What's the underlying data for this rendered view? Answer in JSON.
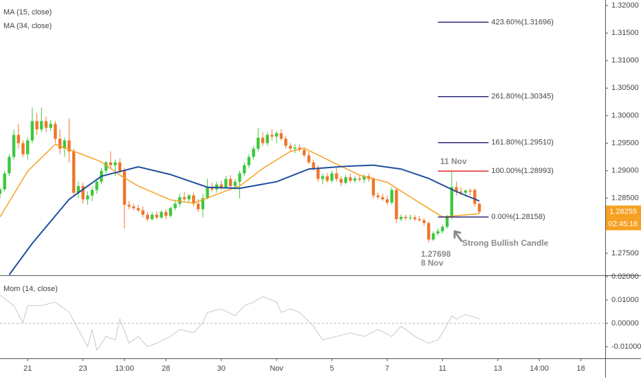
{
  "chart_data": {
    "type": "candlestick",
    "xlim": [
      0,
      131.3
    ],
    "xticks": [
      {
        "value": 6,
        "label": "21"
      },
      {
        "value": 18,
        "label": "23"
      },
      {
        "value": 27,
        "label": "13:00"
      },
      {
        "value": 36,
        "label": "28"
      },
      {
        "value": 48,
        "label": "30"
      },
      {
        "value": 60,
        "label": "Nov"
      },
      {
        "value": 72,
        "label": "5"
      },
      {
        "value": 84,
        "label": "7"
      },
      {
        "value": 96,
        "label": "11"
      },
      {
        "value": 108,
        "label": "13"
      },
      {
        "value": 117,
        "label": "14:00"
      },
      {
        "value": 126,
        "label": "18"
      }
    ],
    "ylim": [
      1.27113,
      1.321
    ],
    "yticks": [
      {
        "value": 1.32,
        "label": "1.32000"
      },
      {
        "value": 1.315,
        "label": "1.31500"
      },
      {
        "value": 1.31,
        "label": "1.31000"
      },
      {
        "value": 1.305,
        "label": "1.30500"
      },
      {
        "value": 1.3,
        "label": "1.30000"
      },
      {
        "value": 1.295,
        "label": "1.29500"
      },
      {
        "value": 1.29,
        "label": "1.29000"
      },
      {
        "value": 1.285,
        "label": "1.28500"
      },
      {
        "value": 1.28,
        "label": "1.28000"
      },
      {
        "value": 1.275,
        "label": "1.27500"
      }
    ],
    "up_color": "#3cc83c",
    "down_color": "#f0752b",
    "candles": {
      "open": [
        1.2858,
        1.2866,
        1.2895,
        1.2925,
        1.2965,
        1.295,
        1.293,
        1.2955,
        1.299,
        1.2975,
        1.299,
        1.2978,
        1.2985,
        1.2958,
        1.294,
        1.2955,
        1.2935,
        1.286,
        1.2872,
        1.2848,
        1.2855,
        1.2865,
        1.288,
        1.29,
        1.2915,
        1.291,
        1.2915,
        1.29,
        1.2838,
        1.2835,
        1.2832,
        1.2828,
        1.282,
        1.2812,
        1.282,
        1.2815,
        1.2825,
        1.2818,
        1.2832,
        1.284,
        1.2852,
        1.2848,
        1.2855,
        1.284,
        1.283,
        1.285,
        1.287,
        1.2866,
        1.2875,
        1.287,
        1.2885,
        1.2872,
        1.288,
        1.2895,
        1.291,
        1.2925,
        1.294,
        1.296,
        1.295,
        1.2965,
        1.2962,
        1.2968,
        1.2958,
        1.2945,
        1.294,
        1.2942,
        1.2938,
        1.2928,
        1.2915,
        1.2905,
        1.2885,
        1.289,
        1.2882,
        1.2895,
        1.2885,
        1.2878,
        1.2888,
        1.2882,
        1.2886,
        1.2884,
        1.289,
        1.2885,
        1.2855,
        1.2852,
        1.2848,
        1.2842,
        1.2865,
        1.2812,
        1.2816,
        1.2814,
        1.2815,
        1.2812,
        1.281,
        1.2805,
        1.2775,
        1.2786,
        1.279,
        1.2798,
        1.2816,
        1.287,
        1.2862,
        1.286,
        1.2864,
        1.2865,
        1.284
      ],
      "high": [
        1.287,
        1.29,
        1.293,
        1.2975,
        1.2985,
        1.2955,
        1.296,
        1.3015,
        1.3005,
        1.3015,
        1.2998,
        1.2992,
        1.299,
        1.2975,
        1.296,
        1.2995,
        1.294,
        1.288,
        1.2878,
        1.2862,
        1.287,
        1.2885,
        1.2905,
        1.2918,
        1.2935,
        1.292,
        1.2922,
        1.2905,
        1.2845,
        1.284,
        1.2838,
        1.2835,
        1.2825,
        1.2825,
        1.2826,
        1.2828,
        1.283,
        1.2835,
        1.2845,
        1.2858,
        1.2862,
        1.2858,
        1.286,
        1.2848,
        1.2858,
        1.2885,
        1.2878,
        1.288,
        1.2882,
        1.289,
        1.2892,
        1.2885,
        1.29,
        1.2915,
        1.293,
        1.2945,
        1.2978,
        1.297,
        1.297,
        1.2975,
        1.2972,
        1.2975,
        1.2962,
        1.295,
        1.2948,
        1.2948,
        1.2942,
        1.2935,
        1.292,
        1.291,
        1.2895,
        1.2895,
        1.29,
        1.2905,
        1.289,
        1.2892,
        1.2895,
        1.289,
        1.2892,
        1.2893,
        1.2895,
        1.2888,
        1.286,
        1.2858,
        1.2855,
        1.287,
        1.2868,
        1.282,
        1.282,
        1.282,
        1.2819,
        1.2818,
        1.2814,
        1.2808,
        1.279,
        1.2795,
        1.2802,
        1.282,
        1.2899,
        1.288,
        1.287,
        1.2866,
        1.2868,
        1.2868,
        1.2842
      ],
      "low": [
        1.285,
        1.2862,
        1.289,
        1.292,
        1.294,
        1.2925,
        1.292,
        1.295,
        1.2965,
        1.297,
        1.297,
        1.2972,
        1.295,
        1.293,
        1.2925,
        1.2915,
        1.2855,
        1.285,
        1.284,
        1.2838,
        1.2845,
        1.2858,
        1.2875,
        1.2895,
        1.2905,
        1.289,
        1.2895,
        1.2795,
        1.283,
        1.2828,
        1.2825,
        1.2815,
        1.2808,
        1.281,
        1.2812,
        1.2812,
        1.2812,
        1.2815,
        1.2828,
        1.2835,
        1.2845,
        1.2842,
        1.2835,
        1.2825,
        1.2815,
        1.2848,
        1.2862,
        1.286,
        1.2865,
        1.2868,
        1.2868,
        1.2865,
        1.285,
        1.289,
        1.2905,
        1.292,
        1.2935,
        1.2945,
        1.2945,
        1.2955,
        1.295,
        1.2955,
        1.294,
        1.2935,
        1.2932,
        1.2935,
        1.2925,
        1.2912,
        1.29,
        1.288,
        1.2875,
        1.2878,
        1.2878,
        1.288,
        1.2872,
        1.2875,
        1.2878,
        1.2878,
        1.288,
        1.2878,
        1.288,
        1.285,
        1.2848,
        1.2845,
        1.2838,
        1.2838,
        1.2805,
        1.2808,
        1.281,
        1.281,
        1.2808,
        1.2808,
        1.28,
        1.27698,
        1.2772,
        1.2782,
        1.2786,
        1.2795,
        1.2812,
        1.2855,
        1.2855,
        1.2852,
        1.2856,
        1.2835,
        1.2822
      ],
      "close": [
        1.2866,
        1.2895,
        1.2925,
        1.2965,
        1.295,
        1.293,
        1.2955,
        1.299,
        1.2975,
        1.299,
        1.2978,
        1.2985,
        1.2958,
        1.294,
        1.2955,
        1.2935,
        1.286,
        1.2872,
        1.2848,
        1.2855,
        1.2865,
        1.288,
        1.29,
        1.2915,
        1.291,
        1.2915,
        1.29,
        1.2838,
        1.2835,
        1.2832,
        1.2828,
        1.282,
        1.2812,
        1.282,
        1.2815,
        1.2825,
        1.2818,
        1.2832,
        1.284,
        1.2852,
        1.2848,
        1.2855,
        1.284,
        1.283,
        1.285,
        1.287,
        1.2866,
        1.2875,
        1.287,
        1.2885,
        1.2872,
        1.288,
        1.2895,
        1.291,
        1.2925,
        1.294,
        1.296,
        1.295,
        1.2965,
        1.2962,
        1.2968,
        1.2958,
        1.2945,
        1.294,
        1.2942,
        1.2938,
        1.2928,
        1.2915,
        1.2905,
        1.2885,
        1.289,
        1.2882,
        1.2895,
        1.2885,
        1.2878,
        1.2888,
        1.2882,
        1.2886,
        1.2884,
        1.289,
        1.2885,
        1.2855,
        1.2852,
        1.2848,
        1.2842,
        1.2865,
        1.2812,
        1.2816,
        1.2814,
        1.2815,
        1.2812,
        1.281,
        1.2805,
        1.2775,
        1.2786,
        1.279,
        1.2798,
        1.2816,
        1.287,
        1.2862,
        1.286,
        1.2864,
        1.2862,
        1.284,
        1.28255
      ]
    },
    "series": [
      {
        "name": "MA (15, close)",
        "color": "#f7a020",
        "x": [
          0,
          6,
          12,
          18,
          22,
          26,
          30,
          37,
          42,
          48,
          52,
          57,
          63,
          66,
          72,
          78,
          84,
          90,
          96,
          100,
          104
        ],
        "values": [
          1.2816,
          1.2899,
          1.2948,
          1.2929,
          1.2916,
          1.2892,
          1.2872,
          1.2847,
          1.2841,
          1.286,
          1.2872,
          1.2904,
          1.2935,
          1.2941,
          1.2916,
          1.2892,
          1.2879,
          1.2847,
          1.2816,
          1.2819,
          1.2822
        ]
      },
      {
        "name": "MA (34, close)",
        "color": "#1f4e9c",
        "x": [
          2,
          7,
          15,
          22,
          30,
          37,
          45,
          52,
          60,
          67,
          75,
          81,
          87,
          93,
          99,
          104
        ],
        "values": [
          1.2711,
          1.2768,
          1.2848,
          1.289,
          1.2907,
          1.2893,
          1.287,
          1.2868,
          1.288,
          1.2903,
          1.2908,
          1.291,
          1.2903,
          1.2886,
          1.2862,
          1.2845
        ]
      }
    ],
    "fib_levels": [
      {
        "label": "423.60%(1.31696)",
        "value": 1.31696,
        "color": "#2b2b7a"
      },
      {
        "label": "261.80%(1.30345)",
        "value": 1.30345,
        "color": "#2b2b7a"
      },
      {
        "label": "161.80%(1.29510)",
        "value": 1.2951,
        "color": "#2b2b7a"
      },
      {
        "label": "100.00%(1.28993)",
        "value": 1.28993,
        "color": "#e0272b"
      },
      {
        "label": "0.00%(1.28158)",
        "value": 1.28158,
        "color": "#2b2b7a"
      }
    ],
    "annotations": [
      "11 Nov",
      "Strong Bullish Candle",
      "1.27698",
      "8 Nov"
    ],
    "last_price": {
      "value": 1.28255,
      "label": "1.28255",
      "color": "#f7a020"
    },
    "countdown": "02:45:16",
    "momentum": {
      "name": "Mom (14, close)",
      "color": "#c8c8c8",
      "ylim": [
        -0.015,
        0.0203
      ],
      "yticks": [
        {
          "value": 0.02,
          "label": "0.02000"
        },
        {
          "value": 0.01,
          "label": "0.01000"
        },
        {
          "value": 0,
          "label": "0.00000"
        },
        {
          "value": -0.01,
          "label": "-0.01000"
        }
      ],
      "x": [
        0,
        3,
        5,
        6,
        9,
        12,
        15,
        17,
        19,
        20,
        21,
        23,
        25,
        26,
        28,
        30,
        32,
        34,
        37,
        39,
        42,
        44,
        45,
        48,
        51,
        53,
        55,
        57,
        60,
        61,
        63,
        65,
        68,
        70,
        73,
        76,
        79,
        82,
        85,
        87,
        90,
        93,
        95,
        96,
        98,
        99,
        101,
        103,
        104
      ],
      "values": [
        0.0121,
        0.0076,
        0.0003,
        0.0076,
        0.0076,
        0.0091,
        0.0047,
        -0.0026,
        -0.01,
        -0.0026,
        -0.0115,
        -0.0056,
        -0.0071,
        0.0018,
        -0.0085,
        -0.0056,
        -0.01,
        -0.0085,
        -0.0056,
        -0.0026,
        -0.0041,
        0.0003,
        0.0047,
        0.0062,
        0.0032,
        0.0076,
        0.0091,
        0.0115,
        0.0091,
        0.0047,
        0.0062,
        0.0047,
        -0.0012,
        -0.0071,
        -0.0056,
        -0.0041,
        -0.0056,
        -0.0026,
        -0.0056,
        -0.0012,
        -0.0056,
        -0.0085,
        -0.0071,
        -0.0041,
        0.0032,
        0.0018,
        0.0038,
        0.0026,
        0.0018
      ]
    }
  }
}
